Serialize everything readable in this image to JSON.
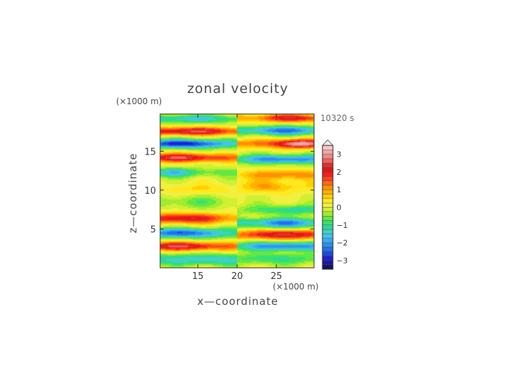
{
  "title": "zonal velocity",
  "time_label": "10320 s",
  "chart_data": {
    "type": "heatmap",
    "title": "zonal velocity",
    "xlabel": "x—coordinate",
    "ylabel": "z—coordinate",
    "x_unit": "(×1000 m)",
    "y_unit": "(×1000 m)",
    "annotation": "10320 s",
    "xlim": [
      10.2,
      29.8
    ],
    "ylim": [
      0,
      19.8
    ],
    "xticks": [
      15,
      20,
      25
    ],
    "yticks": [
      5,
      10,
      15
    ],
    "colorbar": {
      "levels": [
        -3.5,
        -3.25,
        -3.0,
        -2.75,
        -2.5,
        -2.25,
        -2.0,
        -1.75,
        -1.5,
        -1.25,
        -1.0,
        -0.75,
        -0.5,
        -0.25,
        0.0,
        0.25,
        0.5,
        0.75,
        1.0,
        1.25,
        1.5,
        1.75,
        2.0,
        2.25,
        2.5,
        2.75,
        3.0,
        3.25,
        3.5
      ],
      "colors": [
        "#14145f",
        "#1a1aa0",
        "#2020d0",
        "#1f4ad8",
        "#2070e8",
        "#2a8ef0",
        "#38aaf2",
        "#48c0f0",
        "#40d2c0",
        "#2ad89a",
        "#38e070",
        "#60e844",
        "#a0ec30",
        "#d0f030",
        "#f0f040",
        "#ffe820",
        "#ffd000",
        "#ffb000",
        "#ff9000",
        "#ff6a10",
        "#ff4020",
        "#f02020",
        "#e01818",
        "#e03030",
        "#f06060",
        "#f08888",
        "#f0a8a8",
        "#f8c8c8"
      ],
      "tick_values": [
        3,
        2,
        1,
        0,
        -1,
        -2,
        -3
      ],
      "tick_labels": [
        "3",
        "2",
        "1",
        "0",
        "−1",
        "−2",
        "−3"
      ],
      "extend": "max"
    },
    "field_model": {
      "x_segments": [
        {
          "x_from": 10.2,
          "x_to": 20.0,
          "bands": [
            {
              "z": 1.1,
              "amp": -1.5,
              "width": 0.7,
              "x_center": 16,
              "x_width": 9
            },
            {
              "z": 2.8,
              "amp": 2.5,
              "width": 0.55,
              "x_center": 13,
              "x_width": 5
            },
            {
              "z": 4.5,
              "amp": -2.5,
              "width": 0.6,
              "x_center": 13,
              "x_width": 5
            },
            {
              "z": 6.4,
              "amp": 2.3,
              "width": 0.65,
              "x_center": 13,
              "x_width": 5
            },
            {
              "z": 8.5,
              "amp": -0.6,
              "width": 0.8,
              "x_center": 14,
              "x_width": 5
            },
            {
              "z": 10.2,
              "amp": 0.5,
              "width": 0.7,
              "x_center": 15,
              "x_width": 4
            },
            {
              "z": 12.3,
              "amp": -1.7,
              "width": 0.55,
              "x_center": 12,
              "x_width": 2.5
            },
            {
              "z": 14.2,
              "amp": 2.5,
              "width": 0.55,
              "x_center": 13,
              "x_width": 5
            },
            {
              "z": 16.0,
              "amp": -3.0,
              "width": 0.55,
              "x_center": 13,
              "x_width": 5
            },
            {
              "z": 17.6,
              "amp": 2.5,
              "width": 0.5,
              "x_center": 14,
              "x_width": 6
            },
            {
              "z": 19.2,
              "amp": -1.5,
              "width": 0.5,
              "x_center": 14,
              "x_width": 6
            }
          ]
        },
        {
          "x_from": 20.0,
          "x_to": 29.8,
          "bands": [
            {
              "z": 1.2,
              "amp": -1.0,
              "width": 0.7,
              "x_center": 25,
              "x_width": 6
            },
            {
              "z": 2.8,
              "amp": -2.3,
              "width": 0.55,
              "x_center": 26,
              "x_width": 5
            },
            {
              "z": 4.3,
              "amp": 2.4,
              "width": 0.6,
              "x_center": 26,
              "x_width": 5
            },
            {
              "z": 5.8,
              "amp": -2.2,
              "width": 0.6,
              "x_center": 26,
              "x_width": 5
            },
            {
              "z": 7.5,
              "amp": -1.2,
              "width": 0.6,
              "x_center": 27,
              "x_width": 4
            },
            {
              "z": 10.5,
              "amp": 1.0,
              "width": 0.8,
              "x_center": 24,
              "x_width": 3
            },
            {
              "z": 12.0,
              "amp": 1.3,
              "width": 0.6,
              "x_center": 26,
              "x_width": 4
            },
            {
              "z": 14.0,
              "amp": -2.3,
              "width": 0.55,
              "x_center": 26,
              "x_width": 5
            },
            {
              "z": 16.0,
              "amp": 3.3,
              "width": 0.55,
              "x_center": 28,
              "x_width": 3
            },
            {
              "z": 17.7,
              "amp": -2.3,
              "width": 0.55,
              "x_center": 26,
              "x_width": 5
            },
            {
              "z": 19.3,
              "amp": 2.2,
              "width": 0.5,
              "x_center": 27,
              "x_width": 4
            }
          ]
        }
      ]
    }
  }
}
